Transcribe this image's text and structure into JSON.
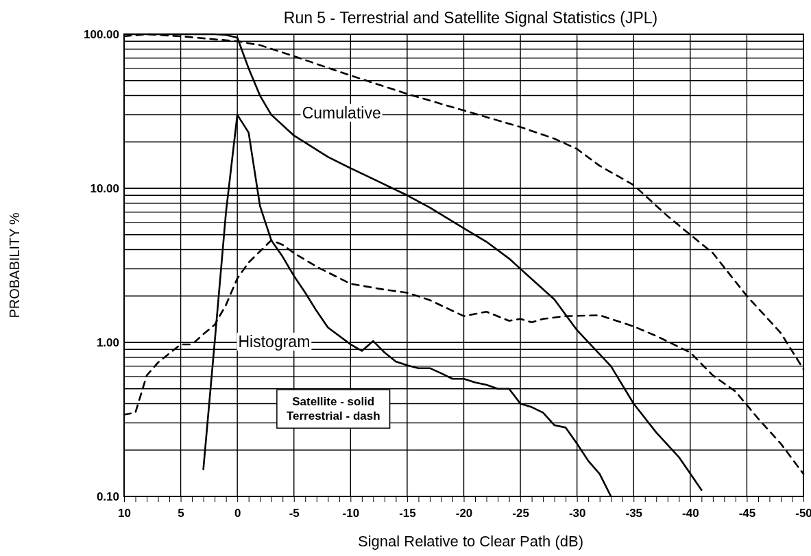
{
  "chart_data": {
    "type": "line",
    "title": "Run 5 - Terrestrial and Satellite Signal Statistics (JPL)",
    "xlabel": "Signal Relative to Clear Path (dB)",
    "ylabel": "PROBABILITY %",
    "log": true,
    "grid": true,
    "marker": "none",
    "xlim": [
      10,
      -50
    ],
    "xticks": [
      10,
      {
        "value": 9,
        "label": null
      },
      {
        "value": 8,
        "label": null
      },
      {
        "value": 7,
        "label": null
      },
      {
        "value": 6,
        "label": null
      },
      5,
      {
        "value": 4,
        "label": null
      },
      {
        "value": 3,
        "label": null
      },
      {
        "value": 2,
        "label": null
      },
      {
        "value": 1,
        "label": null
      },
      0,
      {
        "value": -1,
        "label": null
      },
      {
        "value": -2,
        "label": null
      },
      {
        "value": -3,
        "label": null
      },
      {
        "value": -4,
        "label": null
      },
      -5,
      {
        "value": -6,
        "label": null
      },
      {
        "value": -7,
        "label": null
      },
      {
        "value": -8,
        "label": null
      },
      {
        "value": -9,
        "label": null
      },
      -10,
      {
        "value": -11,
        "label": null
      },
      {
        "value": -12,
        "label": null
      },
      {
        "value": -13,
        "label": null
      },
      {
        "value": -14,
        "label": null
      },
      -15,
      {
        "value": -16,
        "label": null
      },
      {
        "value": -17,
        "label": null
      },
      {
        "value": -18,
        "label": null
      },
      {
        "value": -19,
        "label": null
      },
      -20,
      {
        "value": -21,
        "label": null
      },
      {
        "value": -22,
        "label": null
      },
      {
        "value": -23,
        "label": null
      },
      {
        "value": -24,
        "label": null
      },
      -25,
      {
        "value": -26,
        "label": null
      },
      {
        "value": -27,
        "label": null
      },
      {
        "value": -28,
        "label": null
      },
      {
        "value": -29,
        "label": null
      },
      -30,
      {
        "value": -31,
        "label": null
      },
      {
        "value": -32,
        "label": null
      },
      {
        "value": -33,
        "label": null
      },
      {
        "value": -34,
        "label": null
      },
      -35,
      {
        "value": -36,
        "label": null
      },
      {
        "value": -37,
        "label": null
      },
      {
        "value": -38,
        "label": null
      },
      {
        "value": -39,
        "label": null
      },
      -40,
      {
        "value": -41,
        "label": null
      },
      {
        "value": -42,
        "label": null
      },
      {
        "value": -43,
        "label": null
      },
      {
        "value": -44,
        "label": null
      },
      -45,
      {
        "value": -46,
        "label": null
      },
      {
        "value": -47,
        "label": null
      },
      {
        "value": -48,
        "label": null
      },
      {
        "value": -49,
        "label": null
      },
      -50
    ],
    "ylim": [
      0.1,
      100
    ],
    "yticks": [
      {
        "value": 0.1,
        "label": "0.10"
      },
      {
        "value": 0.2,
        "label": null
      },
      {
        "value": 0.3,
        "label": null
      },
      {
        "value": 0.4,
        "label": null
      },
      {
        "value": 0.5,
        "label": null
      },
      {
        "value": 0.6,
        "label": null
      },
      {
        "value": 0.7,
        "label": null
      },
      {
        "value": 0.8,
        "label": null
      },
      {
        "value": 0.9,
        "label": null
      },
      {
        "value": 1,
        "label": "1.00"
      },
      {
        "value": 2,
        "label": null
      },
      {
        "value": 3,
        "label": null
      },
      {
        "value": 4,
        "label": null
      },
      {
        "value": 5,
        "label": null
      },
      {
        "value": 6,
        "label": null
      },
      {
        "value": 7,
        "label": null
      },
      {
        "value": 8,
        "label": null
      },
      {
        "value": 9,
        "label": null
      },
      {
        "value": 10,
        "label": "10.00"
      },
      {
        "value": 20,
        "label": null
      },
      {
        "value": 30,
        "label": null
      },
      {
        "value": 40,
        "label": null
      },
      {
        "value": 50,
        "label": null
      },
      {
        "value": 60,
        "label": null
      },
      {
        "value": 70,
        "label": null
      },
      {
        "value": 80,
        "label": null
      },
      {
        "value": 90,
        "label": null
      },
      {
        "value": 100,
        "label": "100.00"
      }
    ],
    "annotations": [
      "Cumulative",
      "Histogram",
      "Satellite - solid\nTerrestrial - dash"
    ],
    "series": [
      {
        "color": "#000000",
        "line_style": "solid",
        "x": [
          10,
          5,
          2,
          1,
          0,
          -1,
          -2,
          -3,
          -5,
          -8,
          -10,
          -12,
          -15,
          -17,
          -20,
          -22,
          -24,
          -25,
          -28,
          -30,
          -33,
          -35,
          -37,
          -39,
          -41
        ],
        "values": [
          100,
          100,
          100,
          99,
          95,
          60,
          40,
          30,
          22,
          16,
          13.5,
          11.5,
          9,
          7.5,
          5.5,
          4.5,
          3.5,
          3,
          1.9,
          1.2,
          0.7,
          0.4,
          0.26,
          0.18,
          0.11
        ]
      },
      {
        "color": "#000000",
        "line_style": "solid",
        "x": [
          3,
          2,
          1,
          0,
          -1,
          -2,
          -3,
          -4,
          -5,
          -6,
          -7,
          -8,
          -10,
          -11,
          -12,
          -13,
          -14,
          -15,
          -16,
          -17,
          -18,
          -19,
          -20,
          -21,
          -22,
          -23,
          -24,
          -25,
          -26,
          -27,
          -28,
          -29,
          -30,
          -31,
          -32,
          -33
        ],
        "values": [
          0.15,
          1,
          7,
          30,
          23,
          7.7,
          4.6,
          3.6,
          2.7,
          2.1,
          1.6,
          1.25,
          0.97,
          0.88,
          1.02,
          0.86,
          0.75,
          0.71,
          0.68,
          0.68,
          0.63,
          0.58,
          0.58,
          0.55,
          0.53,
          0.5,
          0.5,
          0.4,
          0.38,
          0.35,
          0.29,
          0.28,
          0.22,
          0.17,
          0.14,
          0.1
        ]
      },
      {
        "color": "#000000",
        "line_style": "dashed",
        "x": [
          10,
          8,
          5,
          0,
          -2,
          -5,
          -10,
          -15,
          -20,
          -25,
          -28,
          -30,
          -32,
          -35,
          -38,
          -40,
          -42,
          -45,
          -48,
          -50
        ],
        "values": [
          97,
          100,
          97,
          90,
          85,
          72,
          54,
          41,
          32,
          25,
          21,
          18,
          14,
          10.5,
          6.6,
          5,
          3.8,
          2,
          1.15,
          0.67
        ]
      },
      {
        "color": "#000000",
        "line_style": "dashed",
        "x": [
          10,
          9,
          8,
          7,
          5,
          4,
          3,
          2,
          1,
          0,
          -1,
          -2,
          -3,
          -4,
          -5,
          -7,
          -10,
          -13,
          -15,
          -17,
          -20,
          -22,
          -24,
          -25,
          -26,
          -27,
          -29,
          -32,
          -35,
          -37,
          -40,
          -42,
          -44,
          -46,
          -48,
          -50
        ],
        "values": [
          0.34,
          0.35,
          0.61,
          0.74,
          0.97,
          0.97,
          1.13,
          1.3,
          1.75,
          2.6,
          3.3,
          3.9,
          4.6,
          4.3,
          3.8,
          3.1,
          2.4,
          2.2,
          2.1,
          1.88,
          1.48,
          1.58,
          1.38,
          1.42,
          1.35,
          1.42,
          1.48,
          1.5,
          1.27,
          1.1,
          0.86,
          0.61,
          0.48,
          0.32,
          0.22,
          0.14
        ]
      }
    ]
  }
}
